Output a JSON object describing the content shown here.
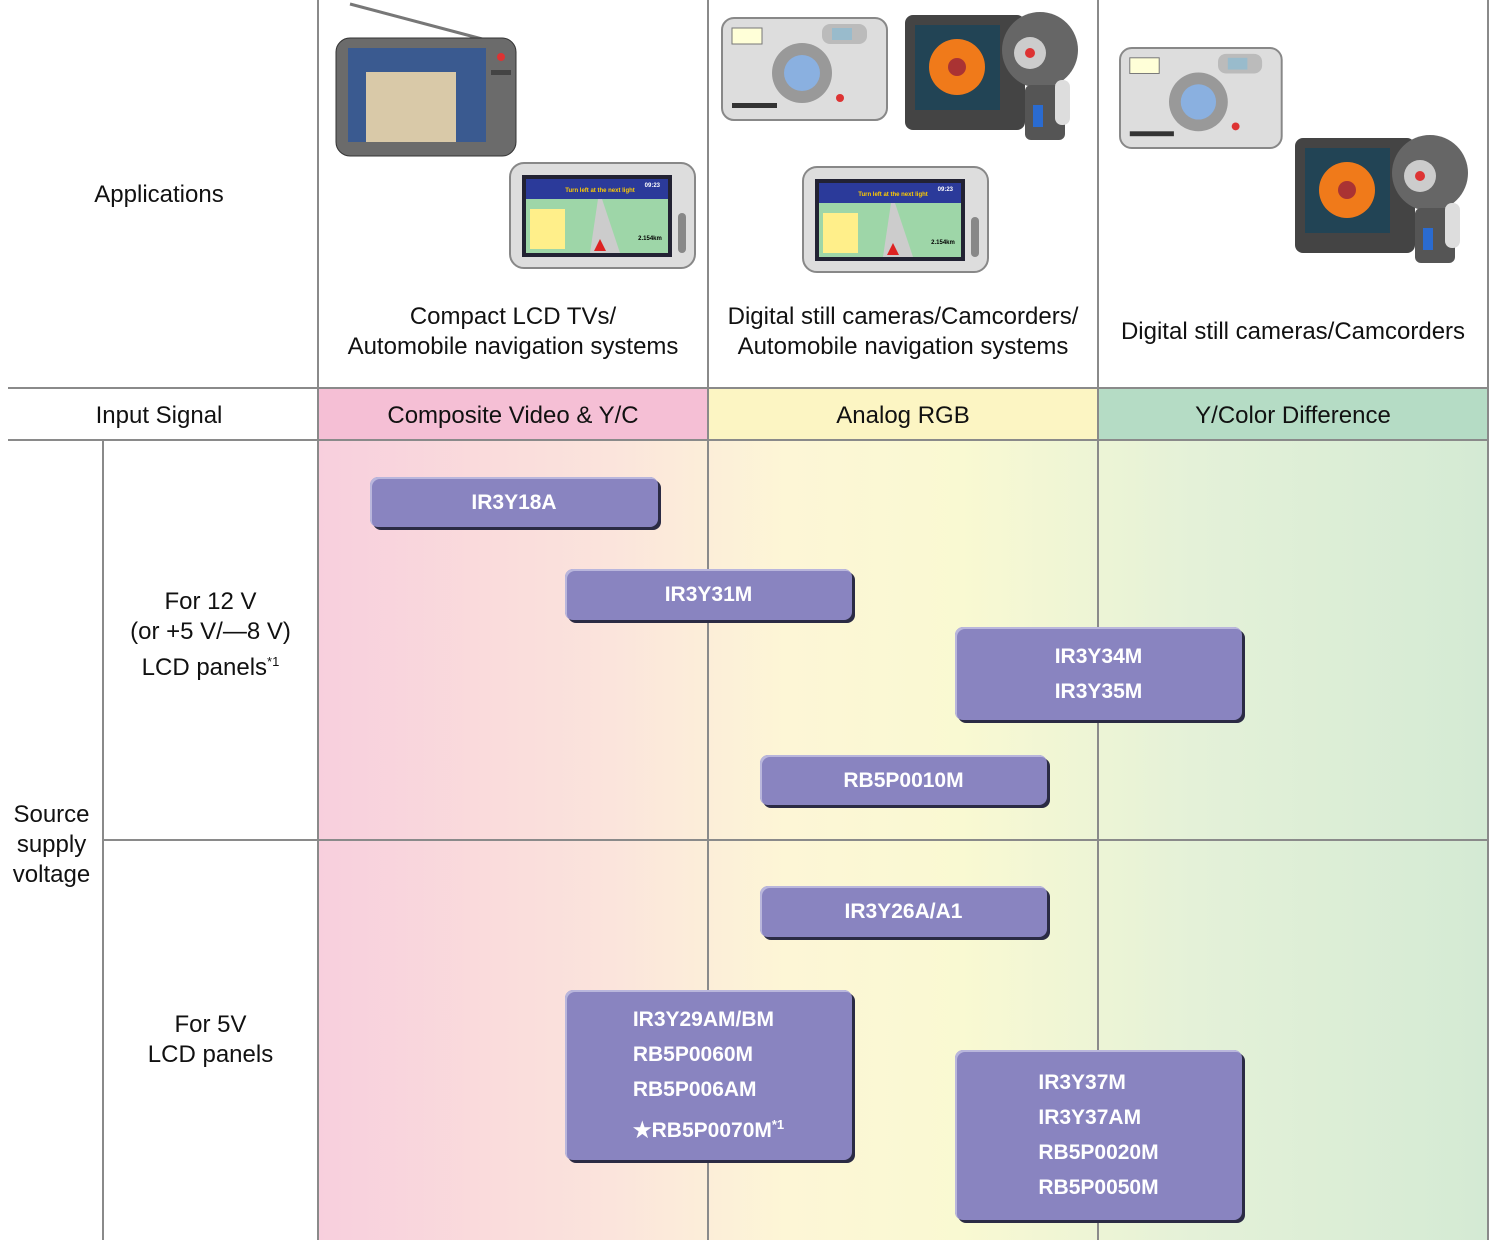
{
  "applications": {
    "label": "Applications",
    "columns": [
      [
        "Compact LCD TVs/",
        "Automobile navigation systems"
      ],
      [
        "Digital still cameras/Camcorders/",
        "Automobile navigation systems"
      ],
      [
        "Digital still cameras/Camcorders"
      ]
    ]
  },
  "nav_screen": {
    "message": "Turn left at the next light",
    "time": "09:23",
    "distance": "2.154km"
  },
  "input_signal": {
    "label": "Input Signal",
    "columns": [
      "Composite Video & Y/C",
      "Analog RGB",
      "Y/Color Difference"
    ]
  },
  "source_supply_voltage": [
    "Source",
    "supply",
    "voltage"
  ],
  "groups": [
    {
      "label": [
        "For 12 V",
        "(or +5 V/—8 V)",
        "LCD panels"
      ],
      "note": "*1",
      "products": [
        {
          "lines": [
            "IR3Y18A"
          ]
        },
        {
          "lines": [
            "IR3Y31M"
          ]
        },
        {
          "lines": [
            "IR3Y34M",
            "IR3Y35M"
          ]
        },
        {
          "lines": [
            "RB5P0010M"
          ]
        }
      ]
    },
    {
      "label": [
        "For 5V",
        "LCD panels"
      ],
      "products": [
        {
          "lines": [
            "IR3Y26A/A1"
          ]
        },
        {
          "lines": [
            "IR3Y29AM/BM",
            "RB5P0060M",
            "RB5P006AM",
            "★RB5P0070M"
          ],
          "note": "*1"
        },
        {
          "lines": [
            "IR3Y37M",
            "IR3Y37AM",
            "RB5P0020M",
            "RB5P0050M"
          ]
        }
      ]
    }
  ]
}
